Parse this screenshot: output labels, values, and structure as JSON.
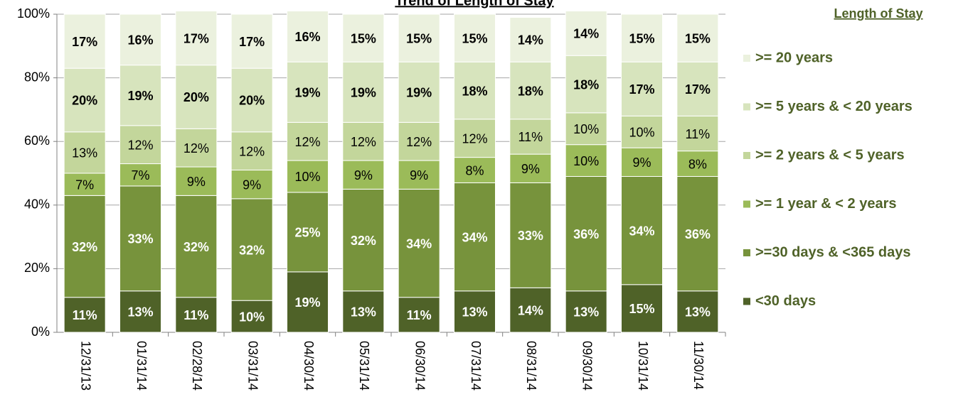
{
  "chart_data": {
    "type": "stacked_bar",
    "title": "Trend of Length of Stay",
    "legend_title": "Length of Stay",
    "categories": [
      "12/31/13",
      "01/31/14",
      "02/28/14",
      "03/31/14",
      "04/30/14",
      "05/31/14",
      "06/30/14",
      "07/31/14",
      "08/31/14",
      "09/30/14",
      "10/31/14",
      "11/30/14"
    ],
    "series": [
      {
        "name": "<30 days",
        "color": "#4f6228",
        "label_color": "#ffffff",
        "values": [
          11,
          13,
          11,
          10,
          19,
          13,
          11,
          13,
          14,
          13,
          15,
          13
        ],
        "value_labels": [
          "11%",
          "13%",
          "11%",
          "10%",
          "19%",
          "13%",
          "11%",
          "13%",
          "14%",
          "13%",
          "15%",
          "13%"
        ]
      },
      {
        "name": ">=30 days & <365 days",
        "color": "#77933c",
        "label_color": "#ffffff",
        "values": [
          32,
          33,
          32,
          32,
          25,
          32,
          34,
          34,
          33,
          36,
          34,
          36
        ],
        "value_labels": [
          "32%",
          "33%",
          "32%",
          "32%",
          "25%",
          "32%",
          "34%",
          "34%",
          "33%",
          "36%",
          "34%",
          "36%"
        ]
      },
      {
        "name": ">= 1 year & < 2 years",
        "color": "#9bbb59",
        "label_color": "#000000",
        "values": [
          7,
          7,
          9,
          9,
          10,
          9,
          9,
          8,
          9,
          10,
          9,
          8
        ],
        "value_labels": [
          "7%",
          "7%",
          "9%",
          "9%",
          "10%",
          "9%",
          "9%",
          "8%",
          "9%",
          "10%",
          "9%",
          "8%"
        ]
      },
      {
        "name": ">= 2 years & < 5 years",
        "color": "#c3d69b",
        "label_color": "#000000",
        "values": [
          13,
          12,
          12,
          12,
          12,
          12,
          12,
          12,
          11,
          10,
          10,
          11
        ],
        "value_labels": [
          "13%",
          "12%",
          "12%",
          "12%",
          "12%",
          "12%",
          "12%",
          "12%",
          "11%",
          "10%",
          "10%",
          "11%"
        ]
      },
      {
        "name": ">= 5 years & < 20 years",
        "color": "#d7e4bd",
        "label_color": "#000000",
        "values": [
          20,
          19,
          20,
          20,
          19,
          19,
          19,
          18,
          18,
          18,
          17,
          17
        ],
        "value_labels": [
          "20%",
          "19%",
          "20%",
          "20%",
          "19%",
          "19%",
          "19%",
          "18%",
          "18%",
          "18%",
          "17%",
          "17%"
        ]
      },
      {
        "name": ">= 20 years",
        "color": "#ebf1de",
        "label_color": "#000000",
        "values": [
          17,
          16,
          17,
          17,
          16,
          15,
          15,
          15,
          14,
          14,
          15,
          15
        ],
        "value_labels": [
          "17%",
          "16%",
          "17%",
          "17%",
          "16%",
          "15%",
          "15%",
          "15%",
          "14%",
          "14%",
          "15%",
          "15%"
        ]
      }
    ],
    "ylim": [
      0,
      100
    ],
    "yticks": [
      {
        "value": 0,
        "label": "0%"
      },
      {
        "value": 20,
        "label": "20%"
      },
      {
        "value": 40,
        "label": "40%"
      },
      {
        "value": 60,
        "label": "60%"
      },
      {
        "value": 80,
        "label": "80%"
      },
      {
        "value": 100,
        "label": "100%"
      }
    ],
    "grid": true,
    "legend": "right"
  }
}
